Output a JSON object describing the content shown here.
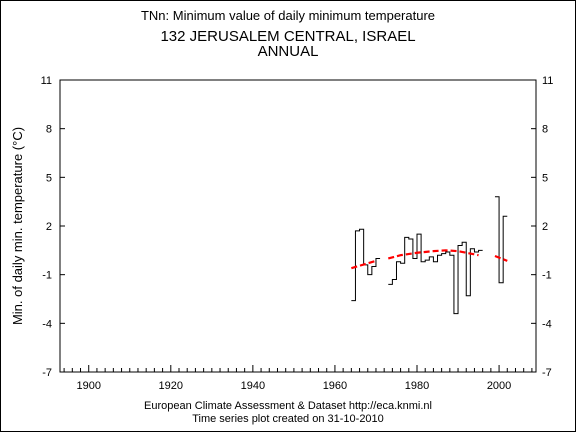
{
  "header": {
    "title": "TNn: Minimum value of daily minimum temperature",
    "station": "132 JERUSALEM CENTRAL, ISRAEL",
    "period": "ANNUAL"
  },
  "footer": {
    "line1": "European Climate Assessment & Dataset  http://eca.knmi.nl",
    "line2": "Time series plot created on 31-10-2010"
  },
  "chart_data": {
    "type": "line",
    "title": "TNn: Minimum value of daily minimum temperature",
    "ylabel": "Min. of daily min. temperature (°C)",
    "xlabel": "",
    "xlim": [
      1893,
      2009
    ],
    "ylim": [
      -7,
      11
    ],
    "x_ticks": [
      1900,
      1920,
      1940,
      1960,
      1980,
      2000
    ],
    "y_ticks": [
      -7,
      -4,
      -1,
      2,
      5,
      8,
      11
    ],
    "y_tick_labels": [
      "-7",
      "-4",
      "-1",
      "2",
      "5",
      "8",
      "11"
    ],
    "grid": false,
    "legend": "none",
    "series": [
      {
        "style": "step",
        "color": "#000000",
        "x": [
          1964,
          1965,
          1966,
          1967,
          1968,
          1969,
          1970,
          1973,
          1974,
          1975,
          1976,
          1977,
          1978,
          1979,
          1980,
          1981,
          1982,
          1983,
          1984,
          1985,
          1986,
          1987,
          1988,
          1989,
          1990,
          1991,
          1992,
          1993,
          1994,
          1995,
          1999,
          2000,
          2001
        ],
        "y": [
          -2.6,
          1.7,
          1.8,
          -0.4,
          -1.0,
          -0.5,
          0.0,
          -1.6,
          -1.3,
          -0.2,
          -0.3,
          1.3,
          1.2,
          0.0,
          1.5,
          -0.2,
          -0.1,
          0.1,
          -0.2,
          0.2,
          0.3,
          0.4,
          0.2,
          -3.4,
          0.8,
          1.0,
          -2.3,
          0.6,
          0.4,
          0.5,
          3.8,
          -1.5,
          2.6
        ],
        "segments": [
          [
            0,
            6
          ],
          [
            7,
            29
          ],
          [
            30,
            32
          ]
        ]
      },
      {
        "style": "dashed",
        "color": "#ff0000",
        "x": [
          1964,
          1966,
          1968,
          1970,
          1973,
          1976,
          1980,
          1984,
          1987,
          1990,
          1992,
          1995,
          1999,
          2000,
          2002
        ],
        "y": [
          -0.6,
          -0.45,
          -0.3,
          -0.15,
          0.0,
          0.2,
          0.35,
          0.45,
          0.5,
          0.45,
          0.35,
          0.2,
          0.15,
          0.05,
          -0.15
        ],
        "segments": [
          [
            0,
            3
          ],
          [
            4,
            11
          ],
          [
            12,
            14
          ]
        ]
      }
    ]
  }
}
